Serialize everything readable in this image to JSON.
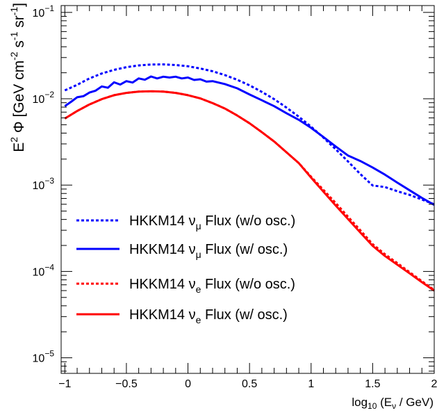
{
  "chart_data": {
    "type": "line",
    "xlabel": {
      "main": "log",
      "sub": "10",
      "paren_open": " (E",
      "nu": "ν",
      "rest": " / GeV)"
    },
    "ylabel": {
      "E": "E",
      "two": "2",
      "phi": " Φ [GeV cm",
      "m2": "-2",
      "s": " s",
      "m1a": "-1",
      "sr": " sr",
      "m1b": "-1",
      "close": "]"
    },
    "xlim": [
      -1.03,
      2.0
    ],
    "ylim": [
      6.6e-06,
      0.12
    ],
    "yscale": "log",
    "x_ticks": [
      {
        "value": -1,
        "label": "−1"
      },
      {
        "value": -0.5,
        "label": "−0.5"
      },
      {
        "value": 0,
        "label": "0"
      },
      {
        "value": 0.5,
        "label": "0.5"
      },
      {
        "value": 1,
        "label": "1"
      },
      {
        "value": 1.5,
        "label": "1.5"
      },
      {
        "value": 2,
        "label": "2"
      }
    ],
    "y_ticks": [
      {
        "value": 0.1,
        "base": "10",
        "exp": "−1"
      },
      {
        "value": 0.01,
        "base": "10",
        "exp": "−2"
      },
      {
        "value": 0.001,
        "base": "10",
        "exp": "−3"
      },
      {
        "value": 0.0001,
        "base": "10",
        "exp": "−4"
      },
      {
        "value": 1e-05,
        "base": "10",
        "exp": "−5"
      }
    ],
    "grid": false,
    "legend_placement": "center-left",
    "series": [
      {
        "name": "HKKM14 νμ Flux (w/o osc.)",
        "legend": {
          "pre": "HKKM14 ",
          "nu": "ν",
          "sub": "μ",
          "post": " Flux (w/o osc.)"
        },
        "color": "#0000ff",
        "dashed": true,
        "x": [
          -1.0,
          -0.9,
          -0.8,
          -0.7,
          -0.6,
          -0.5,
          -0.4,
          -0.3,
          -0.2,
          -0.1,
          0.0,
          0.1,
          0.2,
          0.3,
          0.4,
          0.5,
          0.6,
          0.7,
          0.8,
          0.9,
          1.0,
          1.1,
          1.2,
          1.3,
          1.4,
          1.5,
          1.6,
          1.7,
          1.8,
          1.9,
          2.0
        ],
        "y": [
          0.0125,
          0.0145,
          0.0172,
          0.0196,
          0.0216,
          0.0232,
          0.0243,
          0.0249,
          0.025,
          0.0246,
          0.0238,
          0.0224,
          0.0208,
          0.0188,
          0.0166,
          0.0143,
          0.012,
          0.0099,
          0.0079,
          0.0062,
          0.00475,
          0.00355,
          0.0026,
          0.00188,
          0.00134,
          0.00099,
          0.00095,
          0.00085,
          0.00077,
          0.00068,
          0.0006
        ]
      },
      {
        "name": "HKKM14 νμ Flux (w/ osc.)",
        "legend": {
          "pre": "HKKM14 ",
          "nu": "ν",
          "sub": "μ",
          "post": " Flux (w/ osc.)"
        },
        "color": "#0000ff",
        "dashed": false,
        "x": [
          -1.0,
          -0.95,
          -0.9,
          -0.85,
          -0.8,
          -0.75,
          -0.7,
          -0.65,
          -0.6,
          -0.55,
          -0.5,
          -0.45,
          -0.4,
          -0.35,
          -0.3,
          -0.25,
          -0.2,
          -0.15,
          -0.1,
          -0.05,
          0.0,
          0.05,
          0.1,
          0.15,
          0.2,
          0.3,
          0.4,
          0.5,
          0.6,
          0.7,
          0.8,
          0.9,
          1.0,
          1.1,
          1.2,
          1.3,
          1.4,
          1.5,
          1.6,
          1.7,
          1.8,
          1.9,
          2.0
        ],
        "y": [
          0.0082,
          0.0092,
          0.0104,
          0.0107,
          0.0118,
          0.0124,
          0.0139,
          0.0134,
          0.0155,
          0.0146,
          0.016,
          0.0154,
          0.0172,
          0.0166,
          0.0181,
          0.0172,
          0.018,
          0.0176,
          0.018,
          0.0172,
          0.0176,
          0.0165,
          0.0168,
          0.0158,
          0.016,
          0.0148,
          0.0132,
          0.0112,
          0.0096,
          0.0082,
          0.0068,
          0.0057,
          0.0046,
          0.0036,
          0.0028,
          0.0022,
          0.0019,
          0.0016,
          0.00132,
          0.00107,
          0.00087,
          0.00071,
          0.00059
        ]
      },
      {
        "name": "HKKM14 νe Flux (w/o osc.)",
        "legend": {
          "pre": "HKKM14 ",
          "nu": "ν",
          "sub": "e",
          "post": " Flux (w/o osc.)"
        },
        "color": "#ff0000",
        "dashed": true,
        "x": [
          -1.0,
          -0.9,
          -0.8,
          -0.7,
          -0.6,
          -0.5,
          -0.4,
          -0.3,
          -0.2,
          -0.1,
          0.0,
          0.1,
          0.2,
          0.3,
          0.4,
          0.5,
          0.6,
          0.7,
          0.8,
          0.9,
          1.0,
          1.1,
          1.2,
          1.3,
          1.4,
          1.5,
          1.6,
          1.7,
          1.8,
          1.9,
          2.0
        ],
        "y": [
          0.0059,
          0.0072,
          0.0086,
          0.0099,
          0.011,
          0.0117,
          0.0121,
          0.0122,
          0.0121,
          0.0117,
          0.011,
          0.0101,
          0.0089,
          0.0077,
          0.0064,
          0.0052,
          0.0041,
          0.0032,
          0.0024,
          0.0018,
          0.00125,
          0.00088,
          0.00062,
          0.00043,
          0.000299,
          0.000207,
          0.000158,
          0.000125,
          9.8e-05,
          7.7e-05,
          6.1e-05
        ]
      },
      {
        "name": "HKKM14 νe Flux (w/ osc.)",
        "legend": {
          "pre": "HKKM14 ",
          "nu": "ν",
          "sub": "e",
          "post": " Flux (w/ osc.)"
        },
        "color": "#ff0000",
        "dashed": false,
        "x": [
          -1.0,
          -0.9,
          -0.8,
          -0.7,
          -0.6,
          -0.5,
          -0.4,
          -0.3,
          -0.2,
          -0.1,
          0.0,
          0.1,
          0.2,
          0.3,
          0.4,
          0.5,
          0.6,
          0.7,
          0.8,
          0.9,
          1.0,
          1.1,
          1.2,
          1.3,
          1.4,
          1.5,
          1.6,
          1.7,
          1.8,
          1.9,
          2.0
        ],
        "y": [
          0.0059,
          0.0072,
          0.0086,
          0.0099,
          0.011,
          0.0117,
          0.0121,
          0.0122,
          0.0121,
          0.0117,
          0.011,
          0.0101,
          0.0089,
          0.0077,
          0.0064,
          0.0052,
          0.0041,
          0.0032,
          0.0024,
          0.0018,
          0.00122,
          0.00084,
          0.00058,
          0.000405,
          0.000282,
          0.000198,
          0.000151,
          0.00012,
          9.5e-05,
          7.5e-05,
          6e-05
        ]
      }
    ]
  }
}
